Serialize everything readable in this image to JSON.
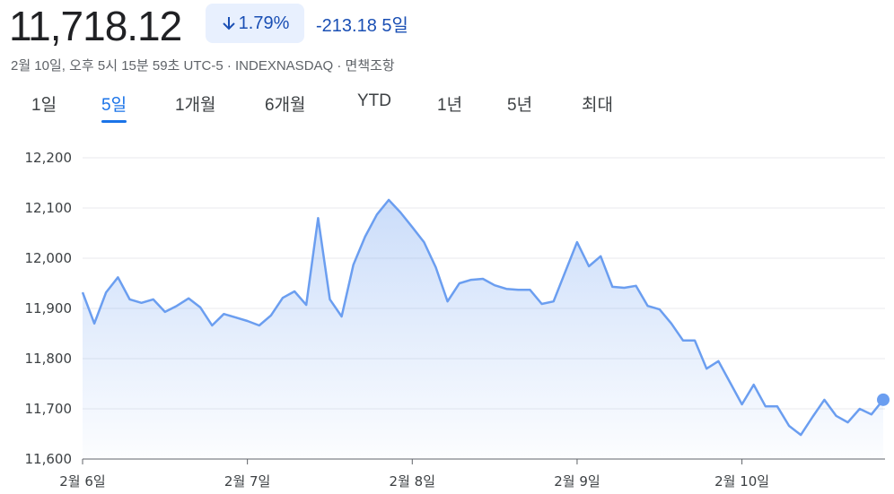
{
  "header": {
    "price": "11,718.12",
    "change_pct": "1.79%",
    "change": "-213.18",
    "period": "5일",
    "meta": "2월 10일, 오후 5시 15분 59초 UTC-5 · INDEXNASDAQ · 면책조항"
  },
  "tabs": {
    "items": [
      "1일",
      "5일",
      "1개월",
      "6개월",
      "YTD",
      "1년",
      "5년",
      "최대"
    ],
    "selected": 1
  },
  "chart_data": {
    "type": "line",
    "series": [
      {
        "name": "INDEXNASDAQ",
        "color": "#6b9ef0",
        "values": [
          11932,
          11870,
          11932,
          11962,
          11918,
          11911,
          11918,
          11893,
          11905,
          11920,
          11902,
          11866,
          11889,
          11882,
          11875,
          11866,
          11886,
          11921,
          11934,
          11907,
          12080,
          11918,
          11884,
          11987,
          12043,
          12087,
          12116,
          12091,
          12062,
          12032,
          11982,
          11914,
          11950,
          11957,
          11959,
          11946,
          11939,
          11937,
          11937,
          11909,
          11914,
          11973,
          12032,
          11984,
          12004,
          11943,
          11941,
          11945,
          11905,
          11898,
          11870,
          11836,
          11836,
          11780,
          11795,
          11752,
          11709,
          11748,
          11705,
          11705,
          11666,
          11648,
          11684,
          11718,
          11686,
          11673,
          11700,
          11689,
          11718.12
        ]
      }
    ],
    "xlim": [
      0,
      68
    ],
    "xticks": [
      {
        "value": 0,
        "label": "2월 6일"
      },
      {
        "value": 14,
        "label": "2월 7일"
      },
      {
        "value": 28,
        "label": "2월 8일"
      },
      {
        "value": 42,
        "label": "2월 9일"
      },
      {
        "value": 56,
        "label": "2월 10일"
      }
    ],
    "ylim": [
      11600,
      12200
    ],
    "yticks": [
      {
        "value": 11600,
        "label": "11,600"
      },
      {
        "value": 11700,
        "label": "11,700"
      },
      {
        "value": 11800,
        "label": "11,800"
      },
      {
        "value": 11900,
        "label": "11,900"
      },
      {
        "value": 12000,
        "label": "12,000"
      },
      {
        "value": 12100,
        "label": "12,100"
      },
      {
        "value": 12200,
        "label": "12,200"
      }
    ],
    "grid": true
  }
}
